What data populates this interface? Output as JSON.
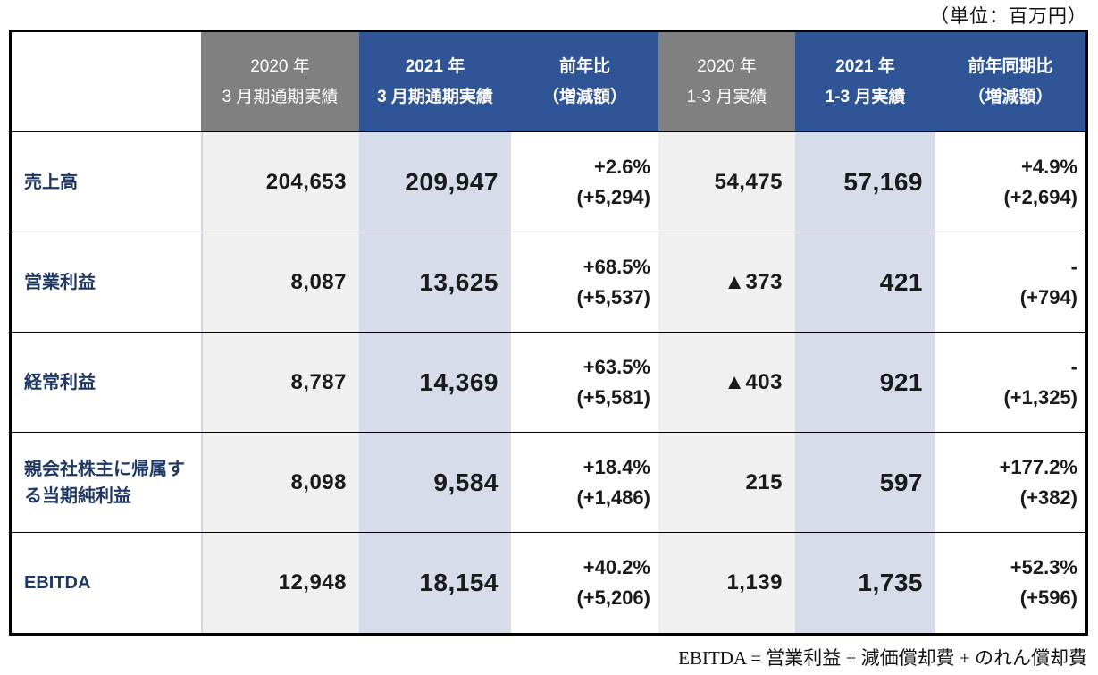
{
  "unit_note": "（単位：百万円）",
  "footnote": "EBITDA = 営業利益 + 減価償却費 + のれん償却費",
  "colors": {
    "header_gray": "#808080",
    "header_blue": "#2F5597",
    "cell_gray": "#F0F0F0",
    "cell_blue": "#D6DCE9",
    "label_navy": "#1F3864",
    "border_black": "#000000"
  },
  "table": {
    "headers": [
      {
        "line1": "2020 年",
        "line2": "3 月期通期実績"
      },
      {
        "line1": "2021 年",
        "line2": "3 月期通期実績"
      },
      {
        "line1": "前年比",
        "line2": "（増減額）"
      },
      {
        "line1": "2020 年",
        "line2": "1-3 月実績"
      },
      {
        "line1": "2021 年",
        "line2": "1-3 月実績"
      },
      {
        "line1": "前年同期比",
        "line2": "（増減額）"
      }
    ],
    "rows": [
      {
        "label": "売上高",
        "fy2020": "204,653",
        "fy2021": "209,947",
        "yoy_pct": "+2.6%",
        "yoy_amt": "(+5,294)",
        "q2020": "54,475",
        "q2021": "57,169",
        "qyoy_pct": "+4.9%",
        "qyoy_amt": "(+2,694)"
      },
      {
        "label": "営業利益",
        "fy2020": "8,087",
        "fy2021": "13,625",
        "yoy_pct": "+68.5%",
        "yoy_amt": "(+5,537)",
        "q2020": "▲373",
        "q2021": "421",
        "qyoy_pct": "-",
        "qyoy_amt": "(+794)"
      },
      {
        "label": "経常利益",
        "fy2020": "8,787",
        "fy2021": "14,369",
        "yoy_pct": "+63.5%",
        "yoy_amt": "(+5,581)",
        "q2020": "▲403",
        "q2021": "921",
        "qyoy_pct": "-",
        "qyoy_amt": "(+1,325)"
      },
      {
        "label": "親会社株主に帰属する当期純利益",
        "fy2020": "8,098",
        "fy2021": "9,584",
        "yoy_pct": "+18.4%",
        "yoy_amt": "(+1,486)",
        "q2020": "215",
        "q2021": "597",
        "qyoy_pct": "+177.2%",
        "qyoy_amt": "(+382)"
      },
      {
        "label": "EBITDA",
        "fy2020": "12,948",
        "fy2021": "18,154",
        "yoy_pct": "+40.2%",
        "yoy_amt": "(+5,206)",
        "q2020": "1,139",
        "q2021": "1,735",
        "qyoy_pct": "+52.3%",
        "qyoy_amt": "(+596)"
      }
    ]
  }
}
